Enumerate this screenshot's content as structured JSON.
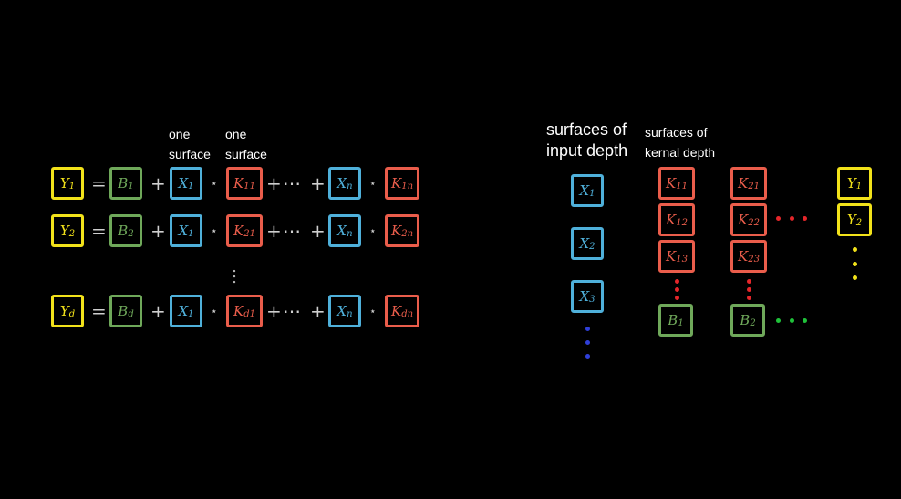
{
  "labels": {
    "one_surface_a": "one surface",
    "one_surface_b": "one surface",
    "input_depth": "surfaces of input depth",
    "kernal_depth": "surfaces of kernal depth"
  },
  "equations": [
    {
      "y": "Y",
      "ys": "1",
      "b": "B",
      "bs": "1",
      "x1": "X",
      "x1s": "1",
      "k1": "K",
      "k1s": "11",
      "xn": "X",
      "xns": "n",
      "kn": "K",
      "kns": "1n"
    },
    {
      "y": "Y",
      "ys": "2",
      "b": "B",
      "bs": "2",
      "x1": "X",
      "x1s": "1",
      "k1": "K",
      "k1s": "21",
      "xn": "X",
      "xns": "n",
      "kn": "K",
      "kns": "2n"
    },
    {
      "y": "Y",
      "ys": "d",
      "b": "B",
      "bs": "d",
      "x1": "X",
      "x1s": "1",
      "k1": "K",
      "k1s": "d1",
      "xn": "X",
      "xns": "n",
      "kn": "K",
      "kns": "dn"
    }
  ],
  "operators": {
    "eq": "=",
    "plus": "+",
    "star": "⋆",
    "cdots": "⋯"
  },
  "inputs": [
    {
      "l": "X",
      "s": "1"
    },
    {
      "l": "X",
      "s": "2"
    },
    {
      "l": "X",
      "s": "3"
    }
  ],
  "kernels_col1": [
    {
      "l": "K",
      "s": "11"
    },
    {
      "l": "K",
      "s": "12"
    },
    {
      "l": "K",
      "s": "13"
    }
  ],
  "kernels_col2": [
    {
      "l": "K",
      "s": "21"
    },
    {
      "l": "K",
      "s": "22"
    },
    {
      "l": "K",
      "s": "23"
    }
  ],
  "biases": [
    {
      "l": "B",
      "s": "1"
    },
    {
      "l": "B",
      "s": "2"
    }
  ],
  "outputs": [
    {
      "l": "Y",
      "s": "1"
    },
    {
      "l": "Y",
      "s": "2"
    }
  ],
  "colors": {
    "output": "#f2e21a",
    "bias": "#6fa85a",
    "input": "#4fb0da",
    "kernel": "#ea5d4b",
    "blue_dot": "#2f3fd8",
    "red_dot": "#e5262a",
    "green_dot": "#1fc23a",
    "yellow_dot": "#f2e21a"
  }
}
